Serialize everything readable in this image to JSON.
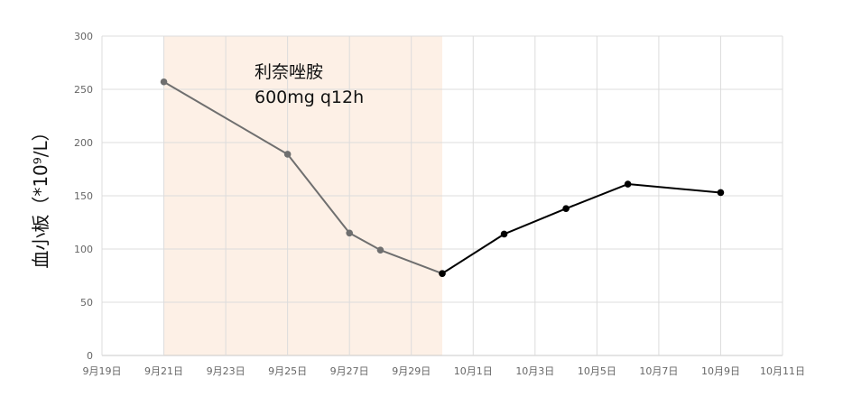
{
  "chart_data": {
    "type": "line",
    "title": "",
    "xlabel": "",
    "ylabel": "血小板（*10⁹/L）",
    "ylim": [
      0,
      300
    ],
    "yticks": [
      0,
      50,
      100,
      150,
      200,
      250,
      300
    ],
    "xlim": [
      "9-19",
      "10-11"
    ],
    "xticks": [
      {
        "date": "9-19",
        "label": "9月19日"
      },
      {
        "date": "9-21",
        "label": "9月21日"
      },
      {
        "date": "9-23",
        "label": "9月23日"
      },
      {
        "date": "9-25",
        "label": "9月25日"
      },
      {
        "date": "9-27",
        "label": "9月27日"
      },
      {
        "date": "9-29",
        "label": "9月29日"
      },
      {
        "date": "10-1",
        "label": "10月1日"
      },
      {
        "date": "10-3",
        "label": "10月3日"
      },
      {
        "date": "10-5",
        "label": "10月5日"
      },
      {
        "date": "10-7",
        "label": "10月7日"
      },
      {
        "date": "10-9",
        "label": "10月9日"
      },
      {
        "date": "10-11",
        "label": "10月11日"
      }
    ],
    "grid": true,
    "series": [
      {
        "color": "#6f6f6f",
        "points": [
          {
            "x": "9-21",
            "y": 257
          },
          {
            "x": "9-25",
            "y": 189
          },
          {
            "x": "9-27",
            "y": 115
          },
          {
            "x": "9-28",
            "y": 99
          },
          {
            "x": "9-30",
            "y": 77
          }
        ]
      },
      {
        "color": "#000000",
        "points": [
          {
            "x": "9-30",
            "y": 77
          },
          {
            "x": "10-2",
            "y": 114
          },
          {
            "x": "10-4",
            "y": 138
          },
          {
            "x": "10-6",
            "y": 161
          },
          {
            "x": "10-9",
            "y": 153
          }
        ]
      }
    ],
    "shaded_region": {
      "from": "9-21",
      "to": "9-30",
      "color": "#fdf0e6",
      "label_lines": [
        "利奈唑胺",
        "600mg q12h"
      ]
    }
  }
}
